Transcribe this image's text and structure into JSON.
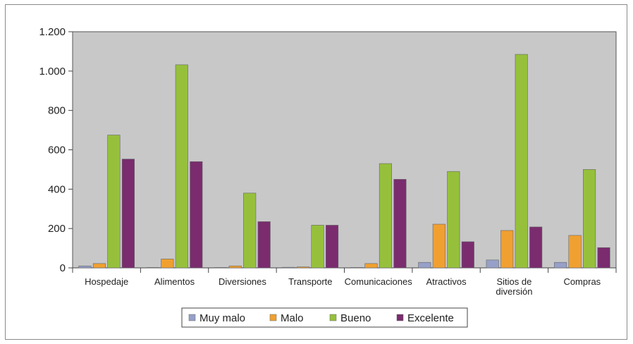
{
  "chart_data": {
    "type": "bar",
    "title": "",
    "xlabel": "",
    "ylabel": "",
    "ylim": [
      0,
      1200
    ],
    "yticks": [
      0,
      200,
      400,
      600,
      800,
      1000,
      1200
    ],
    "ytick_labels": [
      "0",
      "200",
      "400",
      "600",
      "800",
      "1.000",
      "1.200"
    ],
    "grid": false,
    "legend_position": "bottom",
    "categories": [
      [
        "Hospedaje"
      ],
      [
        "Alimentos"
      ],
      [
        "Diversiones"
      ],
      [
        "Transporte"
      ],
      [
        "Comunicaciones"
      ],
      [
        "Atractivos"
      ],
      [
        "Sitios de",
        "diversión"
      ],
      [
        "Compras"
      ]
    ],
    "series": [
      {
        "name": "Muy malo",
        "color": "#96a0c8",
        "values": [
          10,
          2,
          2,
          3,
          2,
          28,
          40,
          28
        ]
      },
      {
        "name": "Malo",
        "color": "#f0a030",
        "values": [
          22,
          45,
          10,
          5,
          22,
          222,
          190,
          165
        ]
      },
      {
        "name": "Bueno",
        "color": "#96c03c",
        "values": [
          675,
          1032,
          380,
          217,
          530,
          490,
          1085,
          500
        ]
      },
      {
        "name": "Excelente",
        "color": "#7a2c6e",
        "values": [
          553,
          540,
          235,
          217,
          450,
          133,
          208,
          103
        ]
      }
    ],
    "plot_background": "#c8c8c8"
  }
}
